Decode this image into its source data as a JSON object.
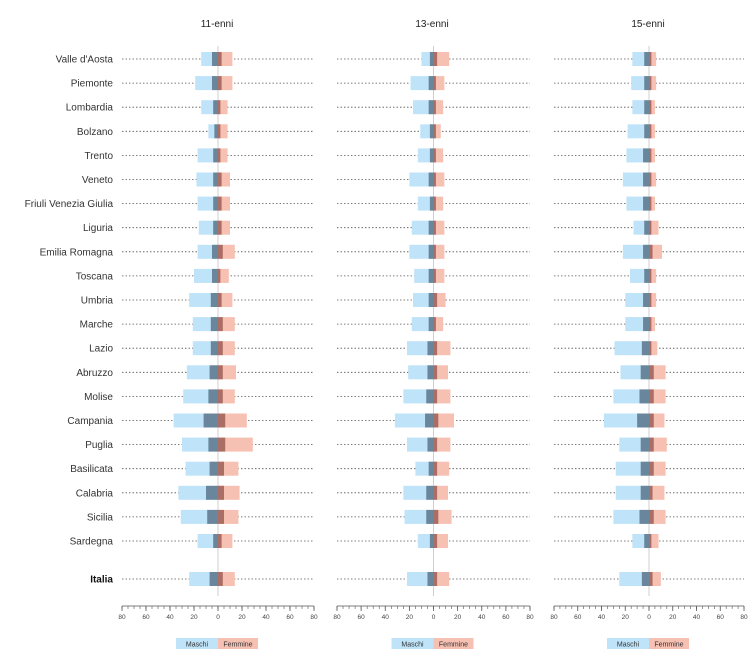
{
  "chart_data": {
    "type": "bar",
    "orientation": "horizontal",
    "layout": "diverging (males to the left, females to the right of 0)",
    "panels": [
      {
        "title": "11-enni",
        "series": [
          {
            "name": "Maschi",
            "key": "m",
            "values": [
              -14,
              -19,
              -14,
              -8,
              -17,
              -18,
              -17,
              -16,
              -17,
              -20,
              -24,
              -21,
              -21,
              -26,
              -29,
              -37,
              -30,
              -27,
              -33,
              -31,
              -17
            ],
            "total": -24
          },
          {
            "name": "Femmine",
            "key": "f",
            "values": [
              12,
              12,
              8,
              8,
              8,
              10,
              10,
              10,
              14,
              9,
              12,
              14,
              14,
              15,
              14,
              24,
              29,
              17,
              18,
              17,
              12
            ],
            "total": 14
          }
        ],
        "inner": [
          {
            "key": "m",
            "values": [
              -5,
              -5,
              -4,
              -3,
              -4,
              -4,
              -4,
              -4,
              -5,
              -5,
              -6,
              -6,
              -6,
              -7,
              -8,
              -12,
              -8,
              -7,
              -10,
              -9,
              -4
            ],
            "total": -7
          },
          {
            "key": "f",
            "values": [
              3,
              3,
              2,
              2,
              2,
              3,
              3,
              3,
              4,
              2,
              3,
              4,
              4,
              4,
              4,
              6,
              6,
              5,
              5,
              5,
              3
            ],
            "total": 4
          }
        ]
      },
      {
        "title": "13-enni",
        "series": [
          {
            "name": "Maschi",
            "key": "m",
            "values": [
              -10,
              -19,
              -17,
              -11,
              -13,
              -20,
              -13,
              -18,
              -20,
              -16,
              -17,
              -18,
              -22,
              -21,
              -25,
              -32,
              -22,
              -15,
              -25,
              -24,
              -13
            ],
            "total": -22
          },
          {
            "name": "Femmine",
            "key": "f",
            "values": [
              13,
              9,
              8,
              6,
              8,
              9,
              8,
              9,
              9,
              9,
              10,
              8,
              14,
              12,
              14,
              17,
              14,
              13,
              12,
              15,
              12
            ],
            "total": 13
          }
        ],
        "inner": [
          {
            "key": "m",
            "values": [
              -3,
              -4,
              -4,
              -3,
              -3,
              -4,
              -3,
              -4,
              -4,
              -4,
              -4,
              -4,
              -5,
              -5,
              -6,
              -7,
              -5,
              -4,
              -6,
              -6,
              -3
            ],
            "total": -5
          },
          {
            "key": "f",
            "values": [
              3,
              2,
              2,
              2,
              2,
              2,
              2,
              2,
              2,
              2,
              3,
              2,
              3,
              3,
              3,
              4,
              3,
              3,
              3,
              4,
              3
            ],
            "total": 3
          }
        ]
      },
      {
        "title": "15-enni",
        "series": [
          {
            "name": "Maschi",
            "key": "m",
            "values": [
              -14,
              -15,
              -14,
              -18,
              -19,
              -22,
              -19,
              -13,
              -22,
              -16,
              -20,
              -20,
              -29,
              -24,
              -30,
              -38,
              -25,
              -28,
              -28,
              -30,
              -14
            ],
            "total": -25
          },
          {
            "name": "Femmine",
            "key": "f",
            "values": [
              6,
              6,
              5,
              5,
              5,
              6,
              5,
              8,
              11,
              6,
              6,
              5,
              7,
              14,
              14,
              13,
              15,
              14,
              13,
              14,
              8
            ],
            "total": 10
          }
        ],
        "inner": [
          {
            "key": "m",
            "values": [
              -4,
              -4,
              -4,
              -4,
              -5,
              -5,
              -5,
              -4,
              -5,
              -4,
              -5,
              -5,
              -6,
              -7,
              -8,
              -10,
              -7,
              -7,
              -7,
              -8,
              -4
            ],
            "total": -6
          },
          {
            "key": "f",
            "values": [
              2,
              2,
              2,
              2,
              2,
              2,
              2,
              2,
              3,
              2,
              2,
              2,
              2,
              4,
              4,
              4,
              4,
              4,
              3,
              4,
              2
            ],
            "total": 3
          }
        ]
      }
    ],
    "categories": [
      "Valle d'Aosta",
      "Piemonte",
      "Lombardia",
      "Bolzano",
      "Trento",
      "Veneto",
      "Friuli Venezia Giulia",
      "Liguria",
      "Emilia Romagna",
      "Toscana",
      "Umbria",
      "Marche",
      "Lazio",
      "Abruzzo",
      "Molise",
      "Campania",
      "Puglia",
      "Basilicata",
      "Calabria",
      "Sicilia",
      "Sardegna"
    ],
    "total_label": "Italia",
    "xlim": [
      -80,
      80
    ],
    "x_ticks": [
      -80,
      -60,
      -40,
      -20,
      0,
      20,
      40,
      60,
      80
    ],
    "x_tick_labels": [
      "80",
      "60",
      "40",
      "20",
      "0",
      "20",
      "40",
      "60",
      "80"
    ],
    "legend": [
      {
        "name": "Maschi",
        "color": "#bfe3f8"
      },
      {
        "name": "Femmine",
        "color": "#f6c0b2"
      }
    ],
    "legend_position": "bottom",
    "colors": {
      "maschi": "#bfe3f8",
      "femmine": "#f6c0b2",
      "maschi_inner": "#59768c",
      "femmine_inner": "#9e5f57",
      "dotted_line": "#555555",
      "axis": "#555555"
    }
  }
}
